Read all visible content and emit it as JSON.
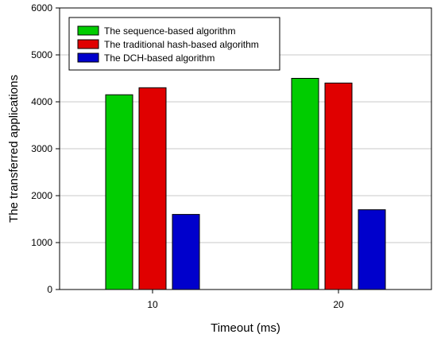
{
  "chart_data": {
    "type": "bar",
    "categories": [
      "10",
      "20"
    ],
    "series": [
      {
        "name": "The sequence-based algorithm",
        "values": [
          4150,
          4500
        ],
        "color": "#00cc00"
      },
      {
        "name": "The traditional hash-based algorithm",
        "values": [
          4300,
          4400
        ],
        "color": "#e00000"
      },
      {
        "name": "The DCH-based algorithm",
        "values": [
          1600,
          1700
        ],
        "color": "#0000cc"
      }
    ],
    "xlabel": "Timeout (ms)",
    "ylabel": "The transferred applications",
    "ylim": [
      0,
      6000
    ],
    "yticks": [
      0,
      1000,
      2000,
      3000,
      4000,
      5000,
      6000
    ],
    "grid": "horizontal",
    "legend_position": "top-left"
  }
}
